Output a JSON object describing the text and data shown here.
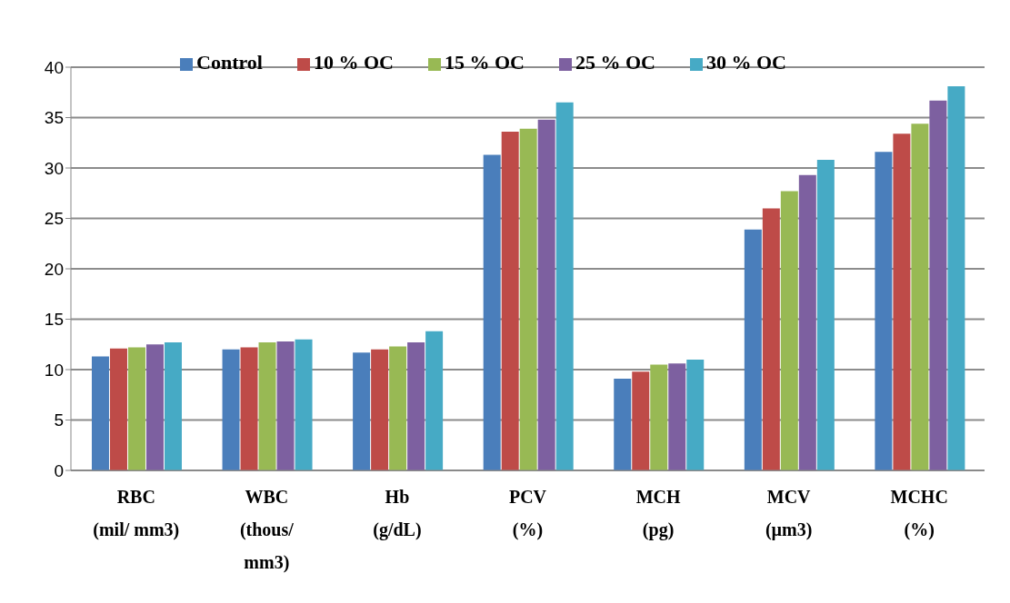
{
  "chart_data": {
    "type": "bar",
    "categories": [
      "RBC\n(mil/ mm3)",
      "WBC\n(thous/\nmm3)",
      "Hb\n(g/dL)",
      "PCV\n(%)",
      "MCH\n(pg)",
      "MCV\n(µm3)",
      "MCHC\n(%)"
    ],
    "series": [
      {
        "name": "Control",
        "color": "#4a7ebb",
        "values": [
          11.3,
          12.0,
          11.7,
          31.3,
          9.1,
          23.9,
          31.6
        ]
      },
      {
        "name": "10 % OC",
        "color": "#be4b48",
        "values": [
          12.1,
          12.2,
          12.0,
          33.6,
          9.8,
          26.0,
          33.4
        ]
      },
      {
        "name": "15 % OC",
        "color": "#98b954",
        "values": [
          12.2,
          12.7,
          12.3,
          33.9,
          10.5,
          27.7,
          34.4
        ]
      },
      {
        "name": "25 % OC",
        "color": "#7d60a0",
        "values": [
          12.5,
          12.8,
          12.7,
          34.8,
          10.6,
          29.3,
          36.7
        ]
      },
      {
        "name": "30 % OC",
        "color": "#46aac5",
        "values": [
          12.7,
          13.0,
          13.8,
          36.5,
          11.0,
          30.8,
          38.1
        ]
      }
    ],
    "ylim": [
      0,
      40
    ],
    "yticks": [
      0,
      5,
      10,
      15,
      20,
      25,
      30,
      35,
      40
    ],
    "grid": "y",
    "legend": "top"
  }
}
